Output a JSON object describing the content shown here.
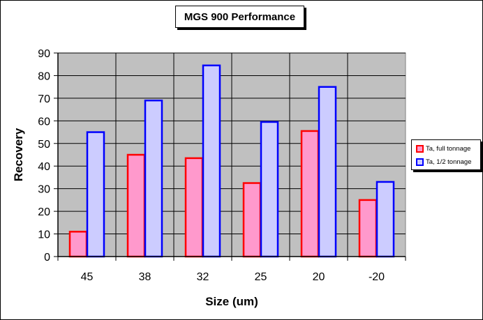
{
  "chart_data": {
    "type": "bar",
    "title": "MGS 900 Performance",
    "xlabel": "Size (um)",
    "ylabel": "Recovery",
    "categories": [
      "45",
      "38",
      "32",
      "25",
      "20",
      "-20"
    ],
    "ylim": [
      0,
      90
    ],
    "yticks": [
      "0",
      "10",
      "20",
      "30",
      "40",
      "50",
      "60",
      "70",
      "80",
      "90"
    ],
    "grid": true,
    "legend_position": "right",
    "plot_background": "#c0c0c0",
    "series": [
      {
        "name": "Ta, full tonnage",
        "values": [
          11,
          45,
          43.5,
          32.5,
          55.5,
          25
        ],
        "fill": "#ff99cc",
        "stroke": "#ff0000"
      },
      {
        "name": "Ta, 1/2 tonnage",
        "values": [
          55,
          69,
          84.5,
          59.5,
          75,
          33
        ],
        "fill": "#ccccff",
        "stroke": "#0000ff"
      }
    ]
  }
}
